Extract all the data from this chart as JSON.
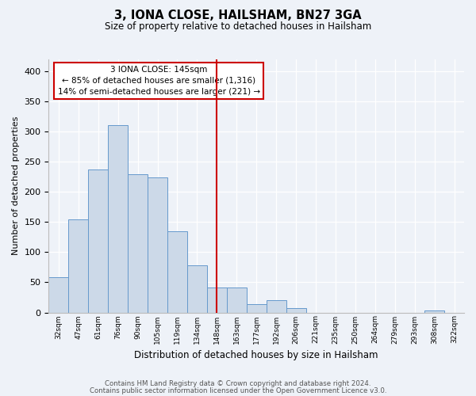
{
  "title": "3, IONA CLOSE, HAILSHAM, BN27 3GA",
  "subtitle": "Size of property relative to detached houses in Hailsham",
  "xlabel": "Distribution of detached houses by size in Hailsham",
  "ylabel": "Number of detached properties",
  "bar_labels": [
    "32sqm",
    "47sqm",
    "61sqm",
    "76sqm",
    "90sqm",
    "105sqm",
    "119sqm",
    "134sqm",
    "148sqm",
    "163sqm",
    "177sqm",
    "192sqm",
    "206sqm",
    "221sqm",
    "235sqm",
    "250sqm",
    "264sqm",
    "279sqm",
    "293sqm",
    "308sqm",
    "322sqm"
  ],
  "bar_values": [
    58,
    155,
    237,
    311,
    230,
    224,
    135,
    78,
    41,
    42,
    14,
    20,
    7,
    0,
    0,
    0,
    0,
    0,
    0,
    3,
    0
  ],
  "bar_color": "#ccd9e8",
  "bar_edge_color": "#6699cc",
  "marker_line_color": "#cc0000",
  "marker_bar_index": 8,
  "annotation_title": "3 IONA CLOSE: 145sqm",
  "annotation_line1": "← 85% of detached houses are smaller (1,316)",
  "annotation_line2": "14% of semi-detached houses are larger (221) →",
  "annotation_box_edge": "#cc0000",
  "ylim": [
    0,
    420
  ],
  "yticks": [
    0,
    50,
    100,
    150,
    200,
    250,
    300,
    350,
    400
  ],
  "footer1": "Contains HM Land Registry data © Crown copyright and database right 2024.",
  "footer2": "Contains public sector information licensed under the Open Government Licence v3.0.",
  "background_color": "#eef2f8"
}
